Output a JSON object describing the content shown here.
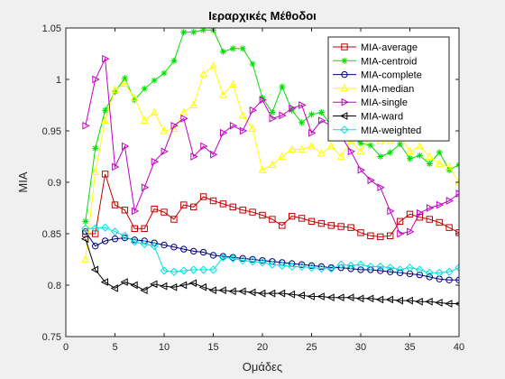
{
  "chart_data": {
    "type": "line",
    "title": "Ιεραρχικές Μέθοδοι",
    "xlabel": "Ομάδες",
    "ylabel": "MIA",
    "xlim": [
      0,
      40
    ],
    "ylim": [
      0.75,
      1.05
    ],
    "xticks": [
      0,
      5,
      10,
      15,
      20,
      25,
      30,
      35,
      40
    ],
    "yticks": [
      0.75,
      0.8,
      0.85,
      0.9,
      0.95,
      1,
      1.05
    ],
    "ytick_labels": [
      "0.75",
      "0.8",
      "0.85",
      "0.9",
      "0.95",
      "1",
      "1.05"
    ],
    "grid": false,
    "legend_position": "top-right",
    "x": [
      2,
      3,
      4,
      5,
      6,
      7,
      8,
      9,
      10,
      11,
      12,
      13,
      14,
      15,
      16,
      17,
      18,
      19,
      20,
      21,
      22,
      23,
      24,
      25,
      26,
      27,
      28,
      29,
      30,
      31,
      32,
      33,
      34,
      35,
      36,
      37,
      38,
      39,
      40
    ],
    "series": [
      {
        "name": "MIA-average",
        "color": "#c00000",
        "marker": "square",
        "values": [
          0.85,
          0.85,
          0.908,
          0.878,
          0.873,
          0.855,
          0.855,
          0.874,
          0.871,
          0.864,
          0.878,
          0.876,
          0.886,
          0.882,
          0.879,
          0.876,
          0.873,
          0.871,
          0.868,
          0.864,
          0.858,
          0.867,
          0.865,
          0.862,
          0.86,
          0.858,
          0.857,
          0.856,
          0.851,
          0.848,
          0.847,
          0.848,
          0.862,
          0.869,
          0.866,
          0.864,
          0.861,
          0.856,
          0.851
        ]
      },
      {
        "name": "MIA-centroid",
        "color": "#00e000",
        "marker": "star",
        "values": [
          0.862,
          0.933,
          0.97,
          0.988,
          1.001,
          0.98,
          0.991,
          0.999,
          1.006,
          1.018,
          1.046,
          1.046,
          1.048,
          1.048,
          1.027,
          1.03,
          1.03,
          1.015,
          0.982,
          0.968,
          0.993,
          0.97,
          0.958,
          0.966,
          0.968,
          0.955,
          0.958,
          0.944,
          0.938,
          0.936,
          0.925,
          0.929,
          0.937,
          0.923,
          0.926,
          0.918,
          0.929,
          0.912,
          0.917
        ]
      },
      {
        "name": "MIA-complete",
        "color": "#000080",
        "marker": "circle",
        "values": [
          0.852,
          0.838,
          0.843,
          0.845,
          0.846,
          0.844,
          0.843,
          0.841,
          0.839,
          0.837,
          0.835,
          0.833,
          0.832,
          0.829,
          0.828,
          0.827,
          0.826,
          0.825,
          0.824,
          0.823,
          0.822,
          0.821,
          0.82,
          0.819,
          0.818,
          0.817,
          0.817,
          0.816,
          0.815,
          0.815,
          0.814,
          0.813,
          0.812,
          0.811,
          0.81,
          0.808,
          0.806,
          0.805,
          0.805
        ]
      },
      {
        "name": "MIA-median",
        "color": "#ffff00",
        "marker": "triangle-up",
        "values": [
          0.825,
          0.91,
          0.96,
          0.99,
          0.996,
          0.982,
          0.96,
          0.968,
          0.95,
          0.952,
          0.968,
          0.975,
          1.005,
          1.013,
          0.985,
          0.995,
          0.965,
          0.952,
          0.912,
          0.917,
          0.925,
          0.932,
          0.932,
          0.935,
          0.928,
          0.935,
          0.925,
          0.94,
          0.93,
          0.945,
          0.94,
          0.94,
          0.945,
          0.93,
          0.935,
          0.925,
          0.918,
          0.915,
          0.9
        ]
      },
      {
        "name": "MIA-single",
        "color": "#c000c0",
        "marker": "triangle-right",
        "values": [
          0.955,
          1.0,
          1.02,
          0.915,
          0.935,
          0.872,
          0.895,
          0.92,
          0.93,
          0.955,
          0.962,
          0.925,
          0.935,
          0.927,
          0.948,
          0.955,
          0.95,
          0.97,
          0.98,
          0.962,
          0.965,
          0.972,
          0.975,
          0.948,
          0.96,
          0.955,
          0.945,
          0.93,
          0.912,
          0.902,
          0.895,
          0.872,
          0.85,
          0.852,
          0.87,
          0.875,
          0.878,
          0.882,
          0.889
        ]
      },
      {
        "name": "MIA-ward",
        "color": "#000000",
        "marker": "triangle-left",
        "values": [
          0.845,
          0.815,
          0.803,
          0.797,
          0.803,
          0.8,
          0.795,
          0.801,
          0.799,
          0.798,
          0.8,
          0.802,
          0.798,
          0.795,
          0.795,
          0.794,
          0.794,
          0.793,
          0.792,
          0.792,
          0.792,
          0.791,
          0.79,
          0.789,
          0.789,
          0.788,
          0.788,
          0.788,
          0.787,
          0.787,
          0.786,
          0.786,
          0.785,
          0.785,
          0.784,
          0.784,
          0.783,
          0.782,
          0.782
        ]
      },
      {
        "name": "MIA-weighted",
        "color": "#00e0e0",
        "marker": "diamond",
        "values": [
          0.855,
          0.855,
          0.856,
          0.852,
          0.848,
          0.842,
          0.84,
          0.838,
          0.814,
          0.813,
          0.814,
          0.815,
          0.815,
          0.815,
          0.827,
          0.826,
          0.824,
          0.823,
          0.822,
          0.82,
          0.819,
          0.818,
          0.818,
          0.817,
          0.816,
          0.816,
          0.82,
          0.819,
          0.82,
          0.818,
          0.818,
          0.817,
          0.815,
          0.817,
          0.815,
          0.812,
          0.812,
          0.813,
          0.817
        ]
      }
    ]
  }
}
